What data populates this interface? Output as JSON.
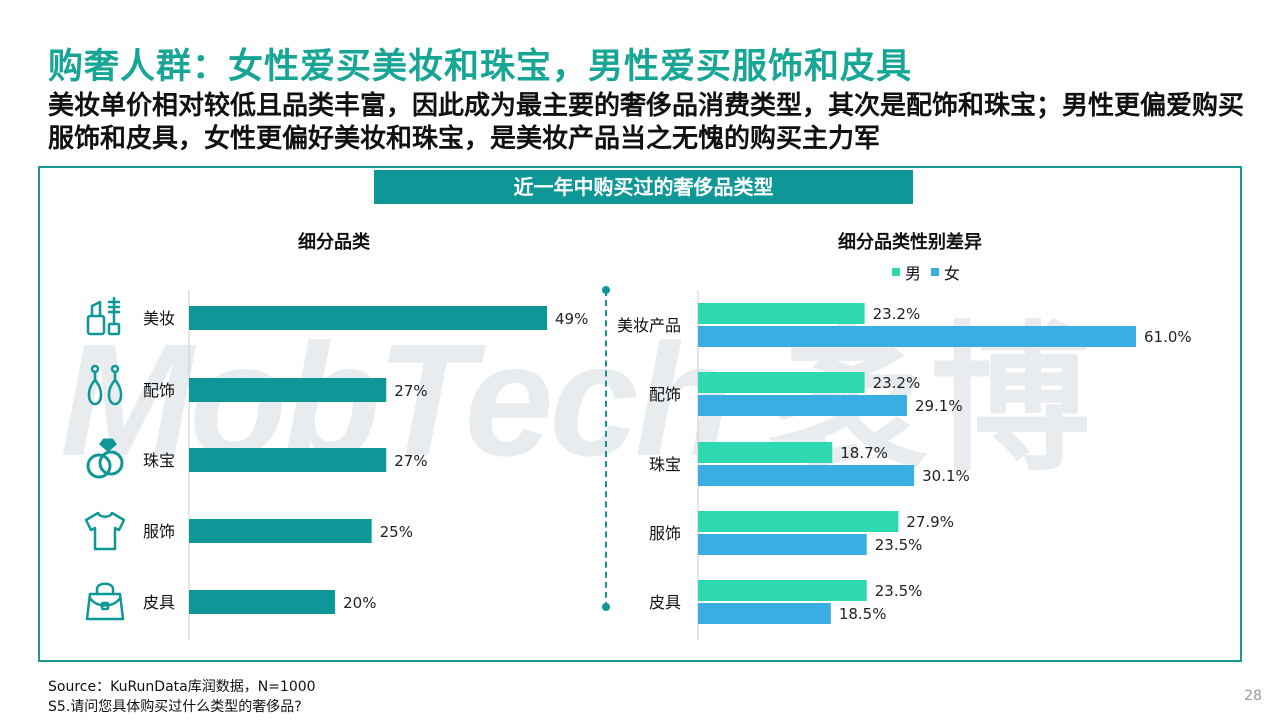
{
  "header": {
    "title": "购奢人群：女性爱买美妆和珠宝，男性爱买服饰和皮具",
    "subtitle": "美妆单价相对较低且品类丰富，因此成为最主要的奢侈品消费类型，其次是配饰和珠宝；男性更偏爱购买服饰和皮具，女性更偏好美妆和珠宝，是美妆产品当之无愧的购买主力军"
  },
  "banner": "近一年中购买过的奢侈品类型",
  "watermark": {
    "latin": "MobTech",
    "cn": "袤博"
  },
  "left_panel": {
    "title": "细分品类",
    "icons": [
      "lipstick-icon",
      "earring-icon",
      "ring-icon",
      "shirt-icon",
      "handbag-icon"
    ]
  },
  "right_panel": {
    "title": "细分品类性别差异"
  },
  "colors": {
    "teal": "#0f9797",
    "male": "#2ed8b0",
    "female": "#3aaee3"
  },
  "chart_data": [
    {
      "type": "bar",
      "orientation": "horizontal",
      "title": "细分品类",
      "categories": [
        "美妆",
        "配饰",
        "珠宝",
        "服饰",
        "皮具"
      ],
      "values": [
        49,
        27,
        27,
        25,
        20
      ],
      "value_labels": [
        "49%",
        "27%",
        "27%",
        "25%",
        "20%"
      ],
      "unit": "%",
      "xlim": [
        0,
        55
      ]
    },
    {
      "type": "bar",
      "orientation": "horizontal",
      "title": "细分品类性别差异",
      "categories": [
        "美妆产品",
        "配饰",
        "珠宝",
        "服饰",
        "皮具"
      ],
      "series": [
        {
          "name": "男",
          "values": [
            23.2,
            23.2,
            18.7,
            27.9,
            23.5
          ],
          "labels": [
            "23.2%",
            "23.2%",
            "18.7%",
            "27.9%",
            "23.5%"
          ]
        },
        {
          "name": "女",
          "values": [
            61.0,
            29.1,
            30.1,
            23.5,
            18.5
          ],
          "labels": [
            "61.0%",
            "29.1%",
            "30.1%",
            "23.5%",
            "18.5%"
          ]
        }
      ],
      "unit": "%",
      "legend": "top",
      "xlim": [
        0,
        68
      ]
    }
  ],
  "footer": {
    "source": "Source：KuRunData库润数据，N=1000",
    "question": "S5.请问您具体购买过什么类型的奢侈品?"
  },
  "page_number": "28"
}
